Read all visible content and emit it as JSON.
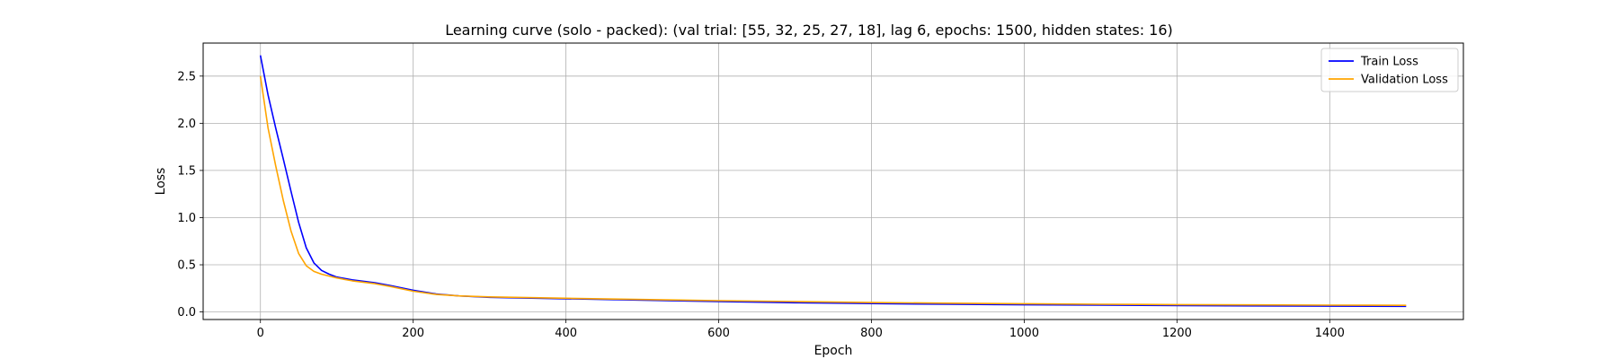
{
  "chart_data": {
    "type": "line",
    "title": "Learning curve (solo - packed): (val trial: [55, 32, 25, 27, 18], lag 6, epochs: 1500, hidden states: 16)",
    "xlabel": "Epoch",
    "ylabel": "Loss",
    "xlim": [
      -75,
      1575
    ],
    "ylim": [
      -0.08,
      2.85
    ],
    "xticks": [
      0,
      200,
      400,
      600,
      800,
      1000,
      1200,
      1400
    ],
    "yticks": [
      0.0,
      0.5,
      1.0,
      1.5,
      2.0,
      2.5
    ],
    "xtick_labels": [
      "0",
      "200",
      "400",
      "600",
      "800",
      "1000",
      "1200",
      "1400"
    ],
    "ytick_labels": [
      "0.0",
      "0.5",
      "1.0",
      "1.5",
      "2.0",
      "2.5"
    ],
    "grid": true,
    "legend_position": "top-right",
    "series": [
      {
        "name": "Train Loss",
        "color": "#0000ff",
        "x": [
          0,
          10,
          20,
          30,
          40,
          50,
          60,
          70,
          80,
          90,
          100,
          120,
          150,
          170,
          200,
          230,
          260,
          300,
          400,
          500,
          600,
          700,
          800,
          900,
          1000,
          1100,
          1200,
          1300,
          1400,
          1500
        ],
        "y": [
          2.72,
          2.3,
          1.95,
          1.62,
          1.28,
          0.95,
          0.68,
          0.52,
          0.44,
          0.4,
          0.37,
          0.34,
          0.31,
          0.28,
          0.23,
          0.19,
          0.17,
          0.155,
          0.14,
          0.125,
          0.11,
          0.098,
          0.089,
          0.082,
          0.076,
          0.072,
          0.068,
          0.065,
          0.062,
          0.06
        ]
      },
      {
        "name": "Validation Loss",
        "color": "#ffa500",
        "x": [
          0,
          10,
          20,
          30,
          40,
          50,
          60,
          70,
          80,
          90,
          100,
          120,
          150,
          170,
          200,
          230,
          260,
          300,
          400,
          500,
          600,
          700,
          800,
          900,
          1000,
          1100,
          1200,
          1300,
          1400,
          1500
        ],
        "y": [
          2.5,
          1.95,
          1.55,
          1.18,
          0.86,
          0.62,
          0.49,
          0.43,
          0.4,
          0.38,
          0.36,
          0.33,
          0.3,
          0.27,
          0.22,
          0.185,
          0.17,
          0.16,
          0.145,
          0.132,
          0.12,
          0.11,
          0.1,
          0.093,
          0.087,
          0.082,
          0.078,
          0.075,
          0.072,
          0.07
        ]
      }
    ]
  }
}
